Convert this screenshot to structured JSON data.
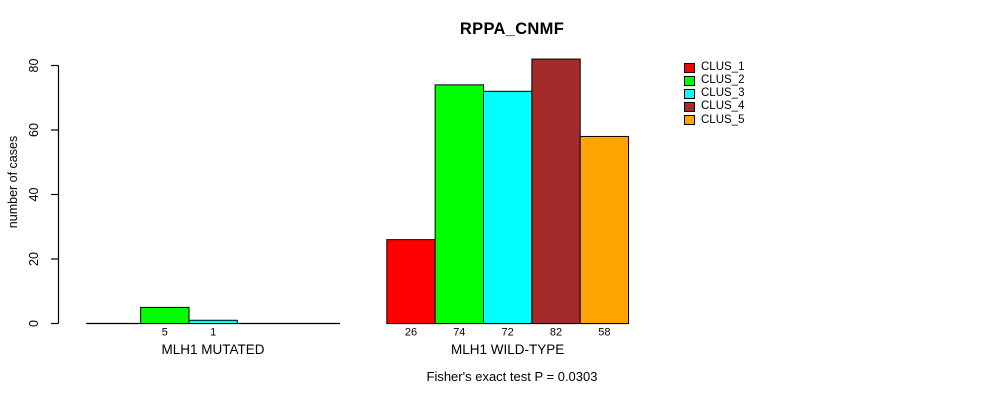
{
  "chart_data": {
    "type": "bar",
    "title": "RPPA_CNMF",
    "ylabel": "number of cases",
    "xlabel": "",
    "footnote": "Fisher's exact test P = 0.0303",
    "ylim": [
      0,
      80
    ],
    "yticks": [
      0,
      20,
      40,
      60,
      80
    ],
    "grid": false,
    "legend_position": "right",
    "bar_value_labels": true,
    "categories": [
      "MLH1 MUTATED",
      "MLH1 WILD-TYPE"
    ],
    "series": [
      {
        "name": "CLUS_1",
        "color": "#FF0000",
        "values": [
          0,
          26
        ]
      },
      {
        "name": "CLUS_2",
        "color": "#00FF00",
        "values": [
          5,
          74
        ]
      },
      {
        "name": "CLUS_3",
        "color": "#00FFFF",
        "values": [
          1,
          72
        ]
      },
      {
        "name": "CLUS_4",
        "color": "#A52A2A",
        "values": [
          0,
          82
        ]
      },
      {
        "name": "CLUS_5",
        "color": "#FFA500",
        "values": [
          0,
          58
        ]
      }
    ]
  }
}
